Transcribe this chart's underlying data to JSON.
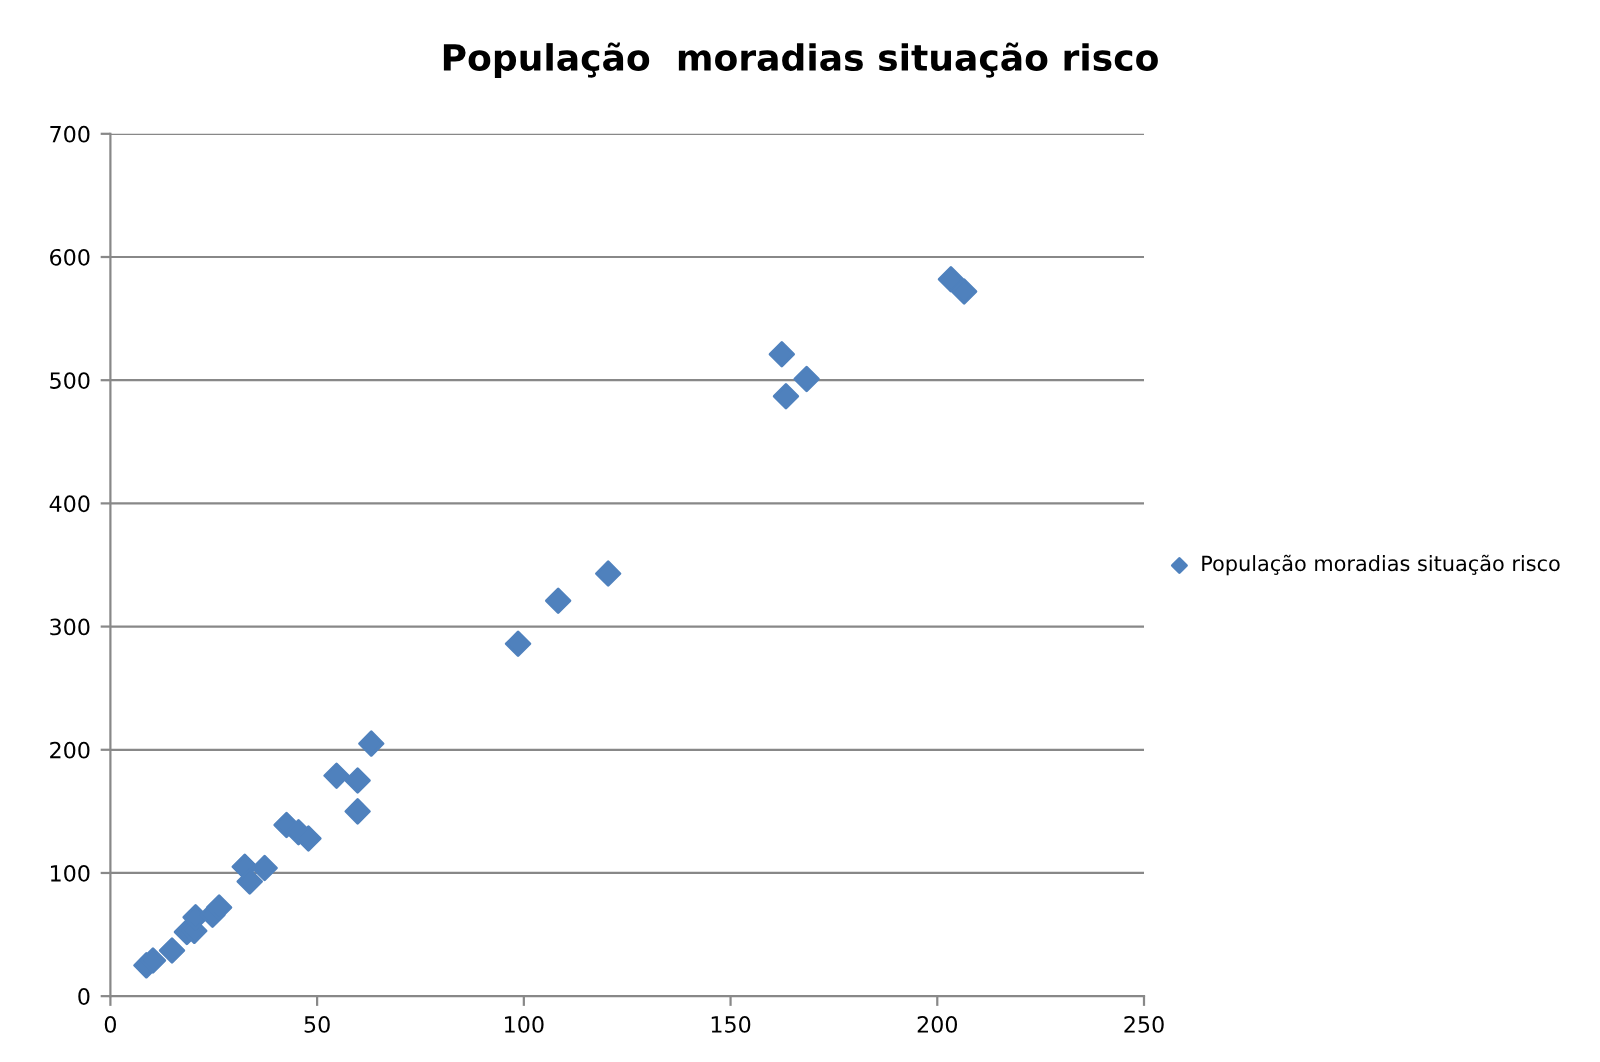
{
  "chart_data": {
    "type": "scatter",
    "title": "População  moradias situação risco",
    "x": [
      8.7,
      10.3,
      14.9,
      18.5,
      20.3,
      20.6,
      24.7,
      26.3,
      32.5,
      33.7,
      37.3,
      42.6,
      45.5,
      47.9,
      54.7,
      59.8,
      59.8,
      63.1,
      98.6,
      108.3,
      120.4,
      162.4,
      163.4,
      168.4,
      203.3,
      206.5
    ],
    "series": [
      {
        "name": "População moradias situação risco",
        "color": "#4f81bd",
        "values": [
          25,
          29,
          37,
          52,
          53,
          64,
          66,
          72,
          105,
          93,
          104,
          139,
          133,
          128,
          179,
          175,
          150,
          205,
          286,
          321,
          343,
          521,
          487,
          501,
          582,
          572
        ]
      }
    ],
    "xlim": [
      0,
      250
    ],
    "xticks": [
      0,
      50,
      100,
      150,
      200,
      250
    ],
    "ylim": [
      0,
      700
    ],
    "yticks": [
      0,
      100,
      200,
      300,
      400,
      500,
      600,
      700
    ],
    "grid": "y",
    "legend": "right",
    "marker": "diamond"
  }
}
